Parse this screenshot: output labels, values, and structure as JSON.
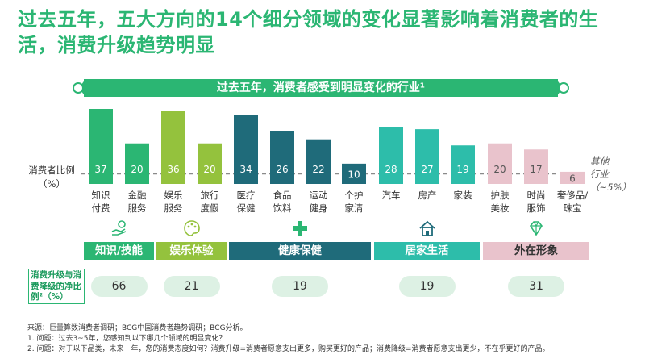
{
  "title": "过去五年，五大方向的14个细分领域的变化显著影响着消费者的生活，消费升级趋势明显",
  "banner": "过去五年，消费者感受到明显变化的行业¹",
  "chart_data": {
    "type": "bar",
    "ylabel": "消费者比例\n（%）",
    "reference_line": {
      "value": 5,
      "label": "其他\n行业\n（~5%）"
    },
    "ylim": [
      0,
      40
    ],
    "categories": [
      "知识\n付费",
      "金融\n服务",
      "娱乐\n服务",
      "旅行\n度假",
      "医疗\n保健",
      "食品\n饮料",
      "运动\n健身",
      "个护\n家清",
      "汽车",
      "房产",
      "家装",
      "护肤\n美妆",
      "时尚\n服饰",
      "奢侈品/\n珠宝"
    ],
    "values": [
      37,
      20,
      36,
      20,
      34,
      26,
      22,
      10,
      28,
      27,
      19,
      20,
      17,
      6
    ],
    "groups": [
      {
        "name": "知识/技能",
        "indices": [
          0,
          1
        ],
        "color": "#2bb673",
        "net": "66",
        "icon": "hand-coin-icon"
      },
      {
        "name": "娱乐体验",
        "indices": [
          2,
          3
        ],
        "color": "#94c23d",
        "net": "21",
        "icon": "palette-icon"
      },
      {
        "name": "健康保健",
        "indices": [
          4,
          5,
          6,
          7
        ],
        "color": "#1f6b7a",
        "net": "19",
        "icon": "medical-cross-icon"
      },
      {
        "name": "居家生活",
        "indices": [
          8,
          9,
          10
        ],
        "color": "#2dbdaa",
        "net": "19",
        "icon": "house-icon"
      },
      {
        "name": "外在形象",
        "indices": [
          11,
          12,
          13
        ],
        "color": "#e9c3cc",
        "net": "31",
        "icon": "diamond-icon"
      }
    ]
  },
  "net_label": "消费升级与消费降级的净比例²（%）",
  "footnotes": [
    "来源：巨量算数消费者调研；BCG中国消费者趋势调研；BCG分析。",
    "1. 问题：过去3~5年，您感知到以下哪几个领域的明显变化？",
    "2. 问题：对于以下品类，未来一年，您的消费态度如何？消费升级=消费者愿意支出更多，购买更好的产品；消费降级=消费者愿意支出更少，不在乎更好的产品。"
  ]
}
